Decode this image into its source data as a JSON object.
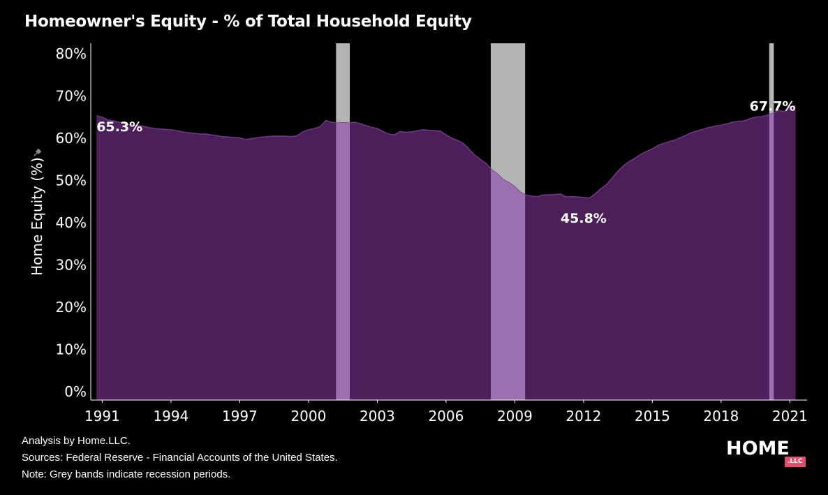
{
  "title": "Homeowner's Equity - % of Total Household Equity",
  "footnotes": {
    "analysis": "Analysis by Home.LLC.",
    "sources": "Sources: Federal Reserve - Financial Accounts of the United States.",
    "note": "Note: Grey bands indicate recession periods."
  },
  "logo": {
    "text": "HOME",
    "badge": ".LLC",
    "badge_color": "#e0506e"
  },
  "colors": {
    "area": "#4c1f5a",
    "line": "#6e3c84",
    "recession": "#b4b4b4",
    "recession_over_area": "#9c6fb0",
    "axis": "#ffffff",
    "background": "#000000"
  },
  "chart_data": {
    "type": "area",
    "ylabel": "Home Equity (%)",
    "ylabel_icon": "pin-icon",
    "xlim": [
      1990.5,
      2021.75
    ],
    "ylim": [
      0,
      80
    ],
    "yticks": [
      0,
      10,
      20,
      30,
      40,
      50,
      60,
      70,
      80
    ],
    "ytick_labels": [
      "0%",
      "10%",
      "20%",
      "30%",
      "40%",
      "50%",
      "60%",
      "70%",
      "80%"
    ],
    "xticks": [
      1991,
      1994,
      1997,
      2000,
      2003,
      2006,
      2009,
      2012,
      2015,
      2018,
      2021
    ],
    "xtick_labels": [
      "1991",
      "1994",
      "1997",
      "2000",
      "2003",
      "2006",
      "2009",
      "2012",
      "2015",
      "2018",
      "2021"
    ],
    "grid": false,
    "series": [
      {
        "x": [
          1990.75,
          1991.0,
          1991.25,
          1991.5,
          1991.75,
          1992.0,
          1992.25,
          1992.5,
          1992.75,
          1993.0,
          1993.25,
          1993.5,
          1993.75,
          1994.0,
          1994.25,
          1994.5,
          1994.75,
          1995.0,
          1995.25,
          1995.5,
          1995.75,
          1996.0,
          1996.25,
          1996.5,
          1996.75,
          1997.0,
          1997.25,
          1997.5,
          1997.75,
          1998.0,
          1998.25,
          1998.5,
          1998.75,
          1999.0,
          1999.25,
          1999.5,
          1999.75,
          2000.0,
          2000.25,
          2000.5,
          2000.75,
          2001.0,
          2001.25,
          2001.5,
          2001.75,
          2002.0,
          2002.25,
          2002.5,
          2002.75,
          2003.0,
          2003.25,
          2003.5,
          2003.75,
          2004.0,
          2004.25,
          2004.5,
          2004.75,
          2005.0,
          2005.25,
          2005.5,
          2005.75,
          2006.0,
          2006.25,
          2006.5,
          2006.75,
          2007.0,
          2007.25,
          2007.5,
          2007.75,
          2008.0,
          2008.25,
          2008.5,
          2008.75,
          2009.0,
          2009.25,
          2009.5,
          2009.75,
          2010.0,
          2010.25,
          2010.5,
          2010.75,
          2011.0,
          2011.25,
          2011.5,
          2011.75,
          2012.0,
          2012.25,
          2012.5,
          2012.75,
          2013.0,
          2013.25,
          2013.5,
          2013.75,
          2014.0,
          2014.25,
          2014.5,
          2014.75,
          2015.0,
          2015.25,
          2015.5,
          2015.75,
          2016.0,
          2016.25,
          2016.5,
          2016.75,
          2017.0,
          2017.25,
          2017.5,
          2017.75,
          2018.0,
          2018.25,
          2018.5,
          2018.75,
          2019.0,
          2019.25,
          2019.5,
          2019.75,
          2020.0,
          2020.25,
          2020.5,
          2020.75,
          2021.0,
          2021.25
        ],
        "values": [
          65.3,
          65.0,
          64.3,
          64.1,
          63.8,
          63.5,
          63.2,
          63.0,
          62.9,
          62.6,
          62.3,
          62.2,
          62.1,
          62.0,
          61.8,
          61.5,
          61.3,
          61.2,
          61.0,
          61.0,
          60.8,
          60.6,
          60.4,
          60.3,
          60.2,
          60.1,
          59.7,
          59.9,
          60.1,
          60.3,
          60.4,
          60.5,
          60.5,
          60.5,
          60.4,
          60.6,
          61.5,
          62.0,
          62.3,
          62.7,
          64.2,
          63.8,
          63.6,
          63.7,
          63.6,
          63.8,
          63.5,
          63.0,
          62.6,
          62.3,
          61.6,
          61.0,
          60.8,
          61.6,
          61.4,
          61.5,
          61.8,
          62.0,
          61.9,
          61.8,
          61.7,
          60.8,
          60.0,
          59.5,
          58.8,
          57.5,
          56.0,
          55.0,
          54.0,
          52.5,
          51.5,
          50.2,
          49.5,
          48.5,
          47.2,
          46.5,
          46.3,
          46.2,
          46.6,
          46.6,
          46.7,
          46.8,
          46.1,
          46.2,
          46.1,
          46.0,
          45.8,
          46.8,
          48.0,
          49.0,
          50.6,
          52.2,
          53.5,
          54.5,
          55.3,
          56.2,
          56.9,
          57.5,
          58.3,
          58.8,
          59.2,
          59.6,
          60.2,
          60.8,
          61.4,
          61.8,
          62.2,
          62.6,
          62.9,
          63.1,
          63.4,
          63.8,
          64.0,
          64.1,
          64.6,
          65.0,
          65.1,
          65.4,
          65.9,
          66.6,
          66.3,
          67.5,
          67.7
        ]
      }
    ],
    "recessions": [
      [
        2001.2,
        2001.8
      ],
      [
        2007.95,
        2009.45
      ],
      [
        2020.1,
        2020.3
      ]
    ],
    "annotations": [
      {
        "text": "65.3%",
        "x": 1990.75,
        "y": 65.3
      },
      {
        "text": "45.8%",
        "x": 2012.0,
        "y": 45.8
      },
      {
        "text": "67.7%",
        "x": 2021.25,
        "y": 67.7
      }
    ]
  }
}
